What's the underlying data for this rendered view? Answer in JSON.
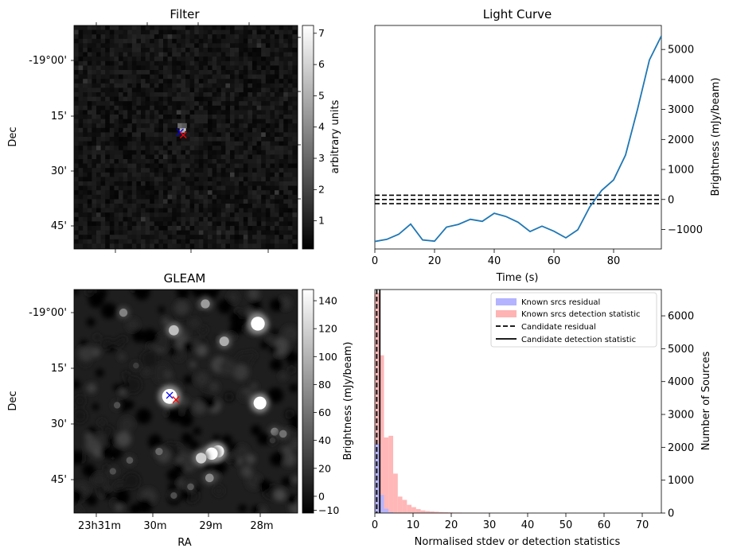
{
  "colors": {
    "light_curve_line": "#1f77b4",
    "known_residual": "#b3b3ff",
    "known_detection": "#ffb3b3",
    "candidate_lines": "#000000",
    "marker_blue": "#0000ff",
    "marker_red": "#ff0000"
  },
  "chart_data": [
    {
      "panel": "filter",
      "type": "heatmap",
      "title": "Filter",
      "ylabel": "Dec",
      "ytick_labels": [
        "-19°00'",
        "15'",
        "30'",
        "45'"
      ],
      "colorbar": {
        "label": "arbitrary units",
        "range": [
          0.1,
          7.25
        ],
        "ticks": [
          1,
          2,
          3,
          4,
          5,
          6,
          7
        ],
        "tick_labels": [
          "1",
          "2",
          "3",
          "4",
          "5",
          "6",
          "7"
        ]
      },
      "source_pixels": [
        {
          "ra_deg": 352.405,
          "dec_deg": -19.323,
          "value": 7.0
        },
        {
          "ra_deg": 352.41,
          "dec_deg": -19.33,
          "value": 5.0
        },
        {
          "ra_deg": 352.42,
          "dec_deg": -19.31,
          "value": 3.0
        },
        {
          "ra_deg": 352.4,
          "dec_deg": -19.31,
          "value": 2.5
        }
      ],
      "markers": [
        {
          "shape": "x",
          "color": "blue",
          "ra_deg": 352.42,
          "dec_deg": -19.34
        },
        {
          "shape": "x",
          "color": "red",
          "ra_deg": 352.405,
          "dec_deg": -19.352
        }
      ]
    },
    {
      "panel": "light_curve",
      "type": "line",
      "title": "Light Curve",
      "xlabel": "Time (s)",
      "ylabel": "Brightness (mJy/beam)",
      "xlim": [
        0,
        96
      ],
      "ylim": [
        -1650,
        5800
      ],
      "xticks": [
        0,
        20,
        40,
        60,
        80
      ],
      "yticks": [
        -1000,
        0,
        1000,
        2000,
        3000,
        4000,
        5000
      ],
      "x": [
        0,
        4,
        8,
        12,
        16,
        20,
        24,
        28,
        32,
        36,
        40,
        44,
        48,
        52,
        56,
        60,
        64,
        68,
        72,
        76,
        80,
        84,
        88,
        92,
        96
      ],
      "y": [
        -1400,
        -1330,
        -1160,
        -820,
        -1350,
        -1390,
        -920,
        -830,
        -660,
        -730,
        -460,
        -570,
        -760,
        -1070,
        -890,
        -1060,
        -1280,
        -1010,
        -250,
        300,
        650,
        1480,
        3000,
        4650,
        5450
      ],
      "hlines": [
        140,
        0,
        -140
      ]
    },
    {
      "panel": "gleam",
      "type": "heatmap",
      "title": "GLEAM",
      "xlabel": "RA",
      "ylabel": "Dec",
      "xtick_labels": [
        "23h31m",
        "30m",
        "29m",
        "28m"
      ],
      "ytick_labels": [
        "-19°00'",
        "15'",
        "30'",
        "45'"
      ],
      "colorbar": {
        "label": "Brightness (mJy/beam)",
        "range": [
          -12,
          148
        ],
        "ticks": [
          0,
          20,
          40,
          60,
          80,
          100,
          120,
          140
        ],
        "tick_labels": [
          "0",
          "20",
          "40",
          "60",
          "80",
          "100",
          "120",
          "140"
        ]
      },
      "sources": [
        {
          "ra_deg": 352.47,
          "dec_deg": -19.34,
          "flux": 200
        },
        {
          "ra_deg": 352.05,
          "dec_deg": -19.01,
          "flux": 180
        },
        {
          "ra_deg": 352.04,
          "dec_deg": -19.37,
          "flux": 160
        },
        {
          "ra_deg": 352.24,
          "dec_deg": -19.59,
          "flux": 150
        },
        {
          "ra_deg": 352.27,
          "dec_deg": -19.6,
          "flux": 150
        },
        {
          "ra_deg": 352.32,
          "dec_deg": -19.62,
          "flux": 120
        },
        {
          "ra_deg": 352.45,
          "dec_deg": -19.04,
          "flux": 110
        },
        {
          "ra_deg": 352.21,
          "dec_deg": -19.09,
          "flux": 100
        },
        {
          "ra_deg": 352.3,
          "dec_deg": -18.92,
          "flux": 90
        },
        {
          "ra_deg": 352.28,
          "dec_deg": -19.71,
          "flux": 80
        },
        {
          "ra_deg": 352.69,
          "dec_deg": -18.96,
          "flux": 75
        },
        {
          "ra_deg": 351.97,
          "dec_deg": -19.5,
          "flux": 70
        },
        {
          "ra_deg": 351.93,
          "dec_deg": -19.51,
          "flux": 65
        },
        {
          "ra_deg": 352.52,
          "dec_deg": -19.59,
          "flux": 60
        },
        {
          "ra_deg": 352.66,
          "dec_deg": -19.63,
          "flux": 50
        },
        {
          "ra_deg": 352.72,
          "dec_deg": -19.38,
          "flux": 45
        },
        {
          "ra_deg": 352.45,
          "dec_deg": -19.79,
          "flux": 45
        },
        {
          "ra_deg": 352.37,
          "dec_deg": -19.75,
          "flux": 50
        },
        {
          "ra_deg": 352.63,
          "dec_deg": -19.2,
          "flux": 35
        },
        {
          "ra_deg": 352.74,
          "dec_deg": -19.68,
          "flux": 45
        },
        {
          "ra_deg": 351.98,
          "dec_deg": -19.54,
          "flux": 30
        }
      ],
      "markers": [
        {
          "shape": "x",
          "color": "blue",
          "ra_deg": 352.47,
          "dec_deg": -19.335
        },
        {
          "shape": "x",
          "color": "red",
          "ra_deg": 352.44,
          "dec_deg": -19.355
        }
      ]
    },
    {
      "panel": "histogram",
      "type": "bar",
      "xlabel": "Normalised stdev or detection statistics",
      "ylabel": "Number of Sources",
      "xlim": [
        0,
        75
      ],
      "ylim": [
        0,
        6800
      ],
      "xticks": [
        0,
        10,
        20,
        30,
        40,
        50,
        60,
        70
      ],
      "yticks": [
        0,
        1000,
        2000,
        3000,
        4000,
        5000,
        6000
      ],
      "legend_position": "upper right",
      "bin_width": 1.2,
      "series": [
        {
          "name": "Known srcs detection statistic",
          "bins": [
            [
              0,
              6700
            ],
            [
              1.2,
              4800
            ],
            [
              2.4,
              2300
            ],
            [
              3.6,
              2350
            ],
            [
              4.8,
              1200
            ],
            [
              6.0,
              500
            ],
            [
              7.2,
              400
            ],
            [
              8.4,
              250
            ],
            [
              9.6,
              180
            ],
            [
              10.8,
              120
            ],
            [
              12.0,
              80
            ],
            [
              13.2,
              60
            ],
            [
              14.4,
              50
            ],
            [
              15.6,
              40
            ],
            [
              16.8,
              30
            ],
            [
              18.0,
              25
            ],
            [
              19.2,
              20
            ],
            [
              20.4,
              15
            ],
            [
              21.6,
              15
            ],
            [
              22.8,
              10
            ],
            [
              24.0,
              10
            ],
            [
              25.2,
              8
            ],
            [
              26.4,
              6
            ],
            [
              27.6,
              5
            ],
            [
              28.8,
              5
            ],
            [
              30.0,
              4
            ],
            [
              31.2,
              3
            ],
            [
              36.0,
              3
            ],
            [
              38.4,
              6
            ],
            [
              40.8,
              2
            ],
            [
              51.6,
              4
            ]
          ]
        },
        {
          "name": "Known srcs residual",
          "bins": [
            [
              0,
              2100
            ],
            [
              1.2,
              550
            ],
            [
              2.4,
              130
            ],
            [
              3.6,
              30
            ],
            [
              4.8,
              10
            ]
          ]
        }
      ],
      "candidate_residual": 0.5,
      "candidate_detection_statistic": 1.3,
      "legend": [
        "Known srcs residual",
        "Known srcs detection statistic",
        "Candidate residual",
        "Candidate detection statistic"
      ]
    }
  ]
}
